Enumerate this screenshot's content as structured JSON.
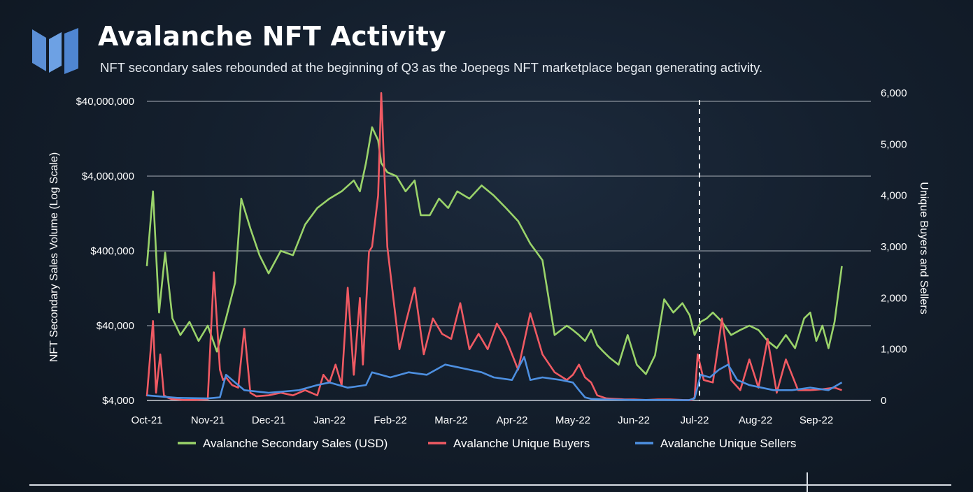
{
  "header": {
    "title": "Avalanche NFT Activity",
    "subtitle": "NFT secondary sales rebounded at the beginning of Q3 as the Joepegs NFT marketplace began generating activity."
  },
  "logo": {
    "icon": "messari-m-logo-icon",
    "color": "#5b8fd6"
  },
  "chart_data": {
    "type": "line",
    "title": "",
    "xlabel": "",
    "ylabel_left": "NFT Secondary Sales Volume (Log Scale)",
    "ylabel_right": "Unique Buyers and Sellers",
    "categories": [
      "Oct-21",
      "Nov-21",
      "Dec-21",
      "Jan-22",
      "Feb-22",
      "Mar-22",
      "Apr-22",
      "May-22",
      "Jun-22",
      "Jul-22",
      "Aug-22",
      "Sep-22"
    ],
    "left_axis": {
      "scale": "log",
      "ticks": [
        4000,
        40000,
        400000,
        4000000,
        40000000
      ],
      "tick_labels": [
        "$4,000",
        "$40,000",
        "$400,000",
        "$4,000,000",
        "$40,000,000"
      ]
    },
    "right_axis": {
      "scale": "linear",
      "ylim": [
        0,
        6000
      ],
      "ticks": [
        0,
        1000,
        2000,
        3000,
        4000,
        5000,
        6000
      ],
      "tick_labels": [
        "0",
        "1,000",
        "2,000",
        "3,000",
        "4,000",
        "5,000",
        "6,000"
      ]
    },
    "grid": true,
    "annotation": {
      "type": "vertical-dashed-line",
      "at": "Jul-22"
    },
    "legend_position": "bottom-center",
    "series": [
      {
        "name": "Avalanche Secondary Sales (USD)",
        "axis": "left",
        "color": "#9ad36a",
        "x": [
          0,
          0.1,
          0.2,
          0.3,
          0.42,
          0.55,
          0.7,
          0.85,
          1.0,
          1.15,
          1.3,
          1.45,
          1.55,
          1.7,
          1.85,
          2.0,
          2.2,
          2.4,
          2.6,
          2.8,
          3.0,
          3.2,
          3.4,
          3.5,
          3.6,
          3.7,
          3.8,
          3.85,
          3.95,
          4.1,
          4.25,
          4.4,
          4.5,
          4.65,
          4.8,
          4.95,
          5.1,
          5.3,
          5.5,
          5.7,
          5.9,
          6.1,
          6.3,
          6.5,
          6.7,
          6.9,
          7.0,
          7.1,
          7.2,
          7.3,
          7.4,
          7.5,
          7.6,
          7.75,
          7.9,
          8.05,
          8.2,
          8.35,
          8.5,
          8.65,
          8.8,
          8.92,
          9.0,
          9.1,
          9.2,
          9.3,
          9.45,
          9.6,
          9.75,
          9.9,
          10.05,
          10.2,
          10.35,
          10.5,
          10.65,
          10.8,
          10.9,
          11.0,
          11.1,
          11.2,
          11.3,
          11.42
        ],
        "values": [
          250000,
          2500000,
          60000,
          380000,
          50000,
          30000,
          45000,
          25000,
          40000,
          18000,
          50000,
          150000,
          2000000,
          800000,
          350000,
          200000,
          400000,
          350000,
          900000,
          1500000,
          2000000,
          2500000,
          3500000,
          2500000,
          6000000,
          18000000,
          12000000,
          6000000,
          4500000,
          4000000,
          2500000,
          3500000,
          1200000,
          1200000,
          2000000,
          1500000,
          2500000,
          2000000,
          3000000,
          2200000,
          1500000,
          1000000,
          500000,
          300000,
          30000,
          40000,
          35000,
          30000,
          25000,
          35000,
          22000,
          18000,
          15000,
          12000,
          30000,
          12000,
          9000,
          16000,
          90000,
          60000,
          80000,
          55000,
          30000,
          45000,
          50000,
          60000,
          45000,
          30000,
          35000,
          40000,
          35000,
          25000,
          20000,
          30000,
          20000,
          50000,
          60000,
          25000,
          40000,
          20000,
          45000,
          250000
        ]
      },
      {
        "name": "Avalanche Unique Buyers",
        "axis": "right",
        "color": "#f05a63",
        "x": [
          0,
          0.1,
          0.15,
          0.22,
          0.28,
          0.35,
          0.4,
          0.5,
          0.6,
          0.8,
          1.0,
          1.1,
          1.2,
          1.25,
          1.3,
          1.4,
          1.5,
          1.6,
          1.7,
          1.8,
          2.0,
          2.2,
          2.4,
          2.6,
          2.8,
          2.9,
          3.0,
          3.1,
          3.2,
          3.3,
          3.4,
          3.5,
          3.55,
          3.65,
          3.7,
          3.8,
          3.85,
          3.95,
          4.05,
          4.15,
          4.25,
          4.4,
          4.55,
          4.7,
          4.85,
          5.0,
          5.15,
          5.3,
          5.45,
          5.6,
          5.75,
          5.9,
          6.1,
          6.3,
          6.5,
          6.7,
          6.9,
          7.0,
          7.1,
          7.2,
          7.3,
          7.4,
          7.55,
          7.7,
          7.85,
          8.0,
          8.2,
          8.4,
          8.6,
          8.8,
          8.95,
          9.0,
          9.05,
          9.15,
          9.3,
          9.45,
          9.6,
          9.75,
          9.9,
          10.05,
          10.2,
          10.35,
          10.5,
          10.7,
          10.9,
          11.1,
          11.3,
          11.42
        ],
        "values": [
          80,
          1550,
          150,
          900,
          100,
          50,
          30,
          20,
          10,
          10,
          20,
          2500,
          600,
          400,
          450,
          300,
          250,
          1400,
          150,
          80,
          100,
          150,
          100,
          200,
          100,
          500,
          350,
          700,
          300,
          2200,
          500,
          2000,
          700,
          2900,
          3000,
          4000,
          6000,
          3000,
          2000,
          1000,
          1500,
          2200,
          900,
          1600,
          1300,
          1200,
          1900,
          1000,
          1300,
          1000,
          1500,
          1200,
          600,
          1700,
          900,
          550,
          400,
          500,
          700,
          450,
          350,
          100,
          40,
          30,
          20,
          20,
          10,
          20,
          20,
          10,
          5,
          60,
          900,
          400,
          350,
          1600,
          400,
          200,
          800,
          250,
          1200,
          150,
          800,
          200,
          200,
          220,
          250,
          200
        ]
      },
      {
        "name": "Avalanche Unique Sellers",
        "axis": "right",
        "color": "#4d8fe0",
        "x": [
          0,
          0.5,
          1.0,
          1.2,
          1.3,
          1.45,
          1.6,
          2.0,
          2.5,
          2.8,
          3.0,
          3.3,
          3.6,
          3.7,
          4.0,
          4.3,
          4.6,
          4.9,
          5.1,
          5.3,
          5.5,
          5.7,
          6.0,
          6.2,
          6.3,
          6.5,
          6.8,
          7.0,
          7.1,
          7.2,
          7.3,
          7.5,
          8.0,
          8.5,
          8.9,
          9.0,
          9.1,
          9.25,
          9.4,
          9.55,
          9.7,
          9.9,
          10.1,
          10.3,
          10.6,
          10.9,
          11.2,
          11.42
        ],
        "values": [
          100,
          50,
          40,
          60,
          500,
          350,
          200,
          150,
          200,
          300,
          350,
          250,
          300,
          550,
          450,
          550,
          500,
          700,
          650,
          600,
          550,
          450,
          400,
          850,
          400,
          450,
          400,
          350,
          200,
          60,
          30,
          20,
          10,
          10,
          5,
          40,
          500,
          450,
          600,
          700,
          400,
          300,
          250,
          200,
          200,
          250,
          200,
          350
        ]
      }
    ]
  }
}
